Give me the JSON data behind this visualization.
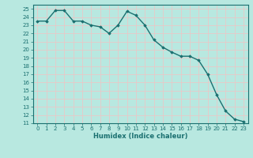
{
  "x": [
    0,
    1,
    2,
    3,
    4,
    5,
    6,
    7,
    8,
    9,
    10,
    11,
    12,
    13,
    14,
    15,
    16,
    17,
    18,
    19,
    20,
    21,
    22,
    23
  ],
  "y": [
    23.5,
    23.5,
    24.8,
    24.8,
    23.5,
    23.5,
    23.0,
    22.8,
    22.0,
    23.0,
    24.7,
    24.2,
    23.0,
    21.2,
    20.3,
    19.7,
    19.2,
    19.2,
    18.7,
    17.0,
    14.5,
    12.5,
    11.5,
    11.2
  ],
  "line_color": "#1a7070",
  "marker": "D",
  "markersize": 1.8,
  "linewidth": 1.0,
  "bg_color": "#b8e8e0",
  "plot_bg_color": "#b8e8e0",
  "grid_color": "#e8c8c8",
  "xlabel": "Humidex (Indice chaleur)",
  "ylim": [
    11,
    25.5
  ],
  "xlim": [
    -0.5,
    23.5
  ],
  "yticks": [
    11,
    12,
    13,
    14,
    15,
    16,
    17,
    18,
    19,
    20,
    21,
    22,
    23,
    24,
    25
  ],
  "xticks": [
    0,
    1,
    2,
    3,
    4,
    5,
    6,
    7,
    8,
    9,
    10,
    11,
    12,
    13,
    14,
    15,
    16,
    17,
    18,
    19,
    20,
    21,
    22,
    23
  ],
  "tick_fontsize": 5.0,
  "label_fontsize": 6.0
}
